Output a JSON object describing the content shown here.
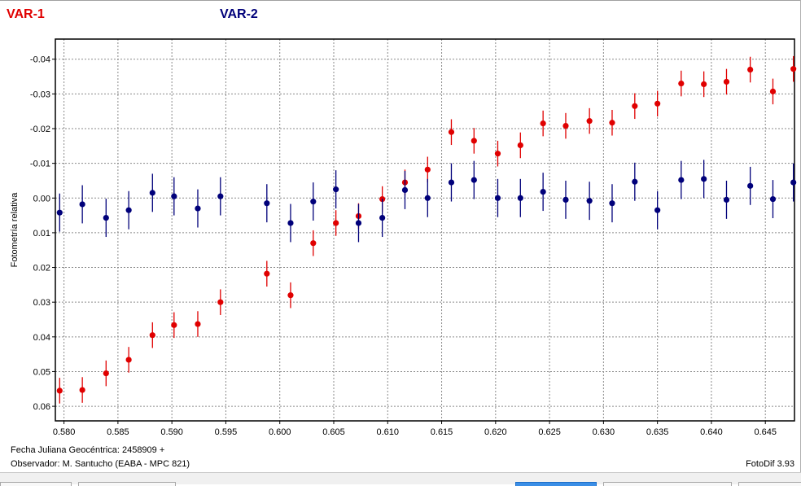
{
  "legend": [
    {
      "label": "VAR-1",
      "color": "#e00000"
    },
    {
      "label": "VAR-2",
      "color": "#00007a"
    }
  ],
  "footer": {
    "jd_label": "Fecha Juliana Geocéntrica: 2458909 +",
    "observer": "Observador: M. Santucho (EABA - MPC 821)",
    "software": "FotoDif 3.93"
  },
  "chart_data": {
    "type": "scatter",
    "xlabel": "",
    "ylabel": "Fotometría relativa",
    "xlim": [
      0.5792,
      0.6477
    ],
    "ylim": [
      0.0642,
      -0.0458
    ],
    "y_inverted": true,
    "grid": true,
    "error_bars": true,
    "x_ticks": [
      "0.580",
      "0.585",
      "0.590",
      "0.595",
      "0.600",
      "0.605",
      "0.610",
      "0.615",
      "0.620",
      "0.625",
      "0.630",
      "0.635",
      "0.640",
      "0.645"
    ],
    "y_ticks": [
      "-0.04",
      "-0.03",
      "-0.02",
      "-0.01",
      "0.00",
      "0.01",
      "0.02",
      "0.03",
      "0.04",
      "0.05",
      "0.06"
    ],
    "series": [
      {
        "name": "VAR-1",
        "color": "#e00000",
        "error": 0.0037,
        "points": [
          [
            0.5796,
            0.0555
          ],
          [
            0.5817,
            0.0553
          ],
          [
            0.5839,
            0.0505
          ],
          [
            0.586,
            0.0466
          ],
          [
            0.5882,
            0.0395
          ],
          [
            0.5902,
            0.0366
          ],
          [
            0.5924,
            0.0363
          ],
          [
            0.5945,
            0.03
          ],
          [
            0.5988,
            0.0218
          ],
          [
            0.601,
            0.028
          ],
          [
            0.6031,
            0.013
          ],
          [
            0.6052,
            0.0072
          ],
          [
            0.6073,
            0.0052
          ],
          [
            0.6095,
            0.0003
          ],
          [
            0.6116,
            -0.0045
          ],
          [
            0.6137,
            -0.0082
          ],
          [
            0.6159,
            -0.019
          ],
          [
            0.618,
            -0.0165
          ],
          [
            0.6202,
            -0.0128
          ],
          [
            0.6223,
            -0.0152
          ],
          [
            0.6244,
            -0.0215
          ],
          [
            0.6265,
            -0.0208
          ],
          [
            0.6287,
            -0.0222
          ],
          [
            0.6308,
            -0.0217
          ],
          [
            0.6329,
            -0.0265
          ],
          [
            0.635,
            -0.0272
          ],
          [
            0.6372,
            -0.033
          ],
          [
            0.6393,
            -0.0328
          ],
          [
            0.6414,
            -0.0335
          ],
          [
            0.6436,
            -0.037
          ],
          [
            0.6457,
            -0.0307
          ],
          [
            0.6476,
            -0.0372
          ]
        ]
      },
      {
        "name": "VAR-2",
        "color": "#00007a",
        "error": 0.0055,
        "points": [
          [
            0.5796,
            0.0042
          ],
          [
            0.5817,
            0.0018
          ],
          [
            0.5839,
            0.0057
          ],
          [
            0.586,
            0.0035
          ],
          [
            0.5882,
            -0.0015
          ],
          [
            0.5902,
            -0.0005
          ],
          [
            0.5924,
            0.003
          ],
          [
            0.5945,
            -0.0005
          ],
          [
            0.5988,
            0.0015
          ],
          [
            0.601,
            0.0072
          ],
          [
            0.6031,
            0.001
          ],
          [
            0.6052,
            -0.0025
          ],
          [
            0.6073,
            0.0072
          ],
          [
            0.6095,
            0.0057
          ],
          [
            0.6116,
            -0.0023
          ],
          [
            0.6137,
            0.0
          ],
          [
            0.6159,
            -0.0045
          ],
          [
            0.618,
            -0.0052
          ],
          [
            0.6202,
            0.0
          ],
          [
            0.6223,
            0.0
          ],
          [
            0.6244,
            -0.0018
          ],
          [
            0.6265,
            0.0005
          ],
          [
            0.6287,
            0.0008
          ],
          [
            0.6308,
            0.0015
          ],
          [
            0.6329,
            -0.0047
          ],
          [
            0.635,
            0.0035
          ],
          [
            0.6372,
            -0.0052
          ],
          [
            0.6393,
            -0.0055
          ],
          [
            0.6414,
            0.0005
          ],
          [
            0.6436,
            -0.0035
          ],
          [
            0.6457,
            0.0003
          ],
          [
            0.6476,
            -0.0045
          ]
        ]
      }
    ]
  }
}
